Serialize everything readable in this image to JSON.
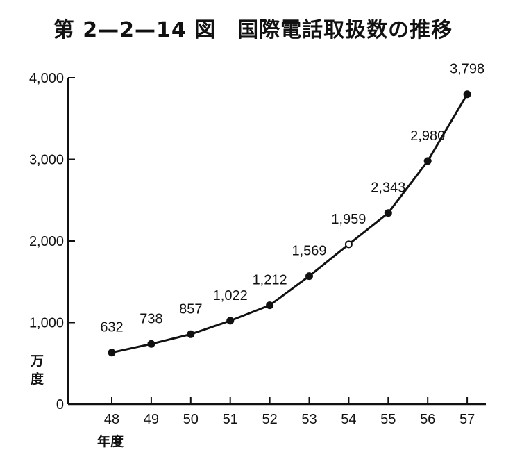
{
  "chart_data": {
    "type": "line",
    "title": "第 2—2—14 図　国際電話取扱数の推移",
    "xlabel": "年度",
    "ylabel_unit": [
      "万",
      "度"
    ],
    "categories": [
      "48",
      "49",
      "50",
      "51",
      "52",
      "53",
      "54",
      "55",
      "56",
      "57"
    ],
    "values": [
      632,
      738,
      857,
      1022,
      1212,
      1569,
      1959,
      2343,
      2980,
      3798
    ],
    "value_labels": [
      "632",
      "738",
      "857",
      "1,022",
      "1,212",
      "1,569",
      "1,959",
      "2,343",
      "2,980",
      "3,798"
    ],
    "yticks": [
      0,
      1000,
      2000,
      3000,
      4000
    ],
    "ytick_labels": [
      "0",
      "1,000",
      "2,000",
      "3,000",
      "4,000"
    ],
    "ylim": [
      0,
      4000
    ],
    "grid": false,
    "line_color": "#111111"
  }
}
